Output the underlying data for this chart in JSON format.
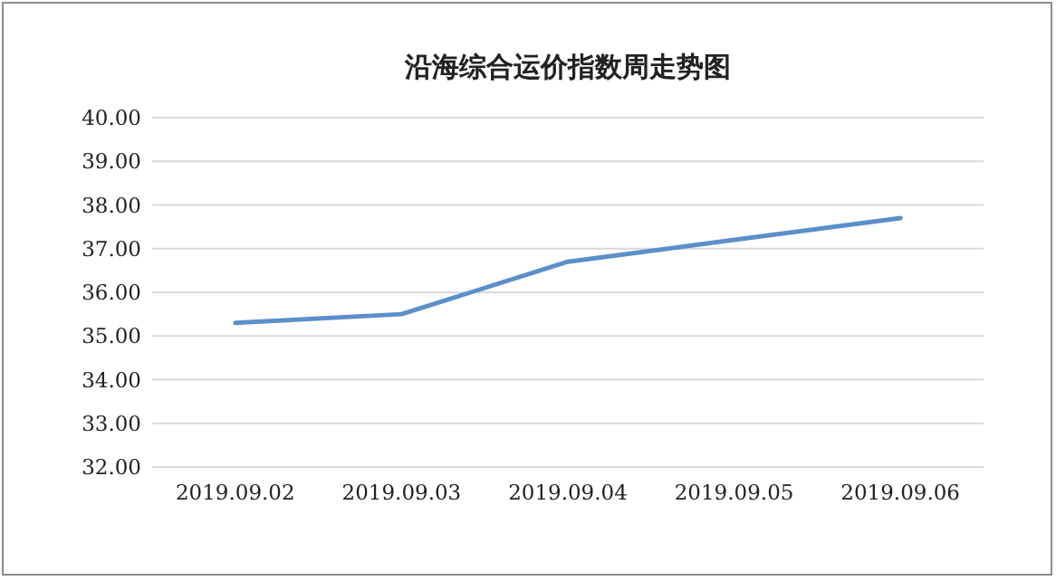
{
  "chart_data": {
    "type": "line",
    "title": "沿海综合运价指数周走势图",
    "categories": [
      "2019.09.02",
      "2019.09.03",
      "2019.09.04",
      "2019.09.05",
      "2019.09.06"
    ],
    "series": [
      {
        "color": "#5b8fc9",
        "values": [
          35.3,
          35.5,
          36.7,
          37.2,
          37.7
        ]
      }
    ],
    "ylim": [
      32,
      40
    ],
    "yticks": [
      {
        "value": 32,
        "label": "32.00"
      },
      {
        "value": 33,
        "label": "33.00"
      },
      {
        "value": 34,
        "label": "34.00"
      },
      {
        "value": 35,
        "label": "35.00"
      },
      {
        "value": 36,
        "label": "36.00"
      },
      {
        "value": 37,
        "label": "37.00"
      },
      {
        "value": 38,
        "label": "38.00"
      },
      {
        "value": 39,
        "label": "39.00"
      },
      {
        "value": 40,
        "label": "40.00"
      }
    ],
    "grid": "y",
    "marker": "none",
    "line_style": "solid"
  }
}
